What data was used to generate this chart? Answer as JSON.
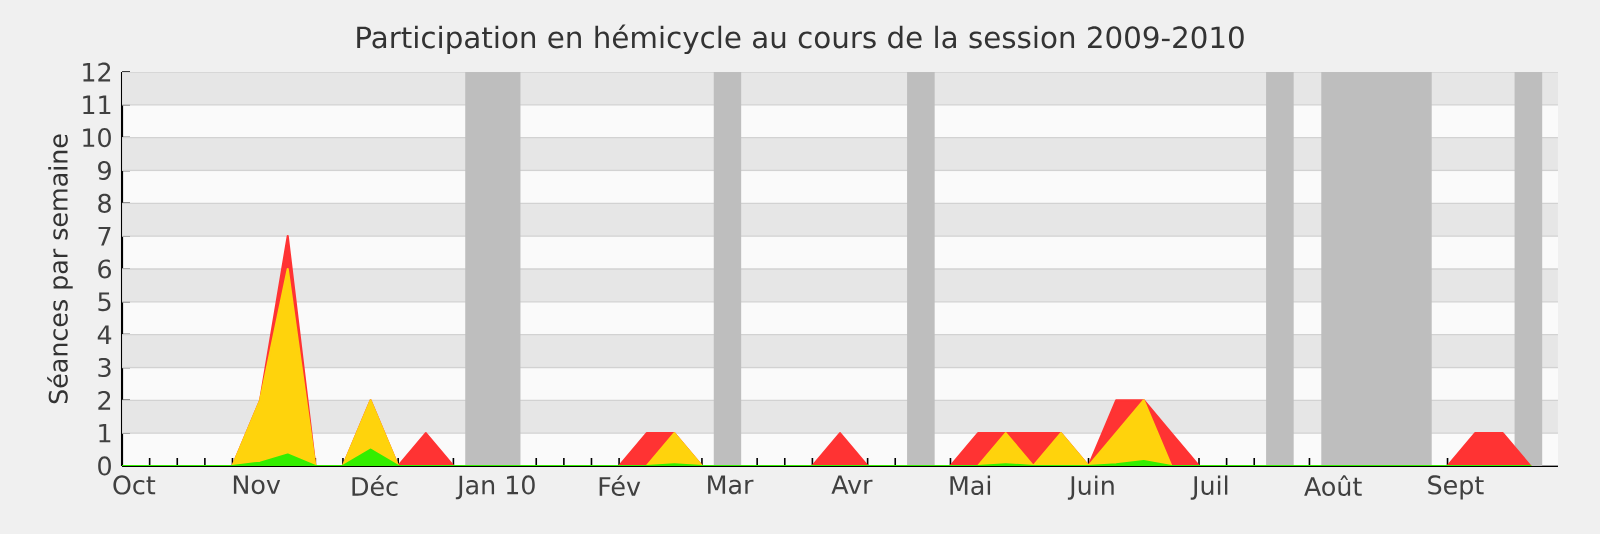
{
  "chart_data": {
    "type": "area",
    "title": "Participation en hémicycle au cours de la session 2009-2010",
    "ylabel": "Séances par semaine",
    "x": [
      "2009-09-28",
      "2009-10-05",
      "2009-10-12",
      "2009-10-19",
      "2009-10-26",
      "2009-11-02",
      "2009-11-09",
      "2009-11-16",
      "2009-11-23",
      "2009-11-30",
      "2009-12-07",
      "2009-12-14",
      "2009-12-21",
      "2009-12-28",
      "2010-01-04",
      "2010-01-11",
      "2010-01-18",
      "2010-01-25",
      "2010-02-01",
      "2010-02-08",
      "2010-02-15",
      "2010-02-22",
      "2010-03-01",
      "2010-03-08",
      "2010-03-15",
      "2010-03-22",
      "2010-03-29",
      "2010-04-05",
      "2010-04-12",
      "2010-04-19",
      "2010-04-26",
      "2010-05-03",
      "2010-05-10",
      "2010-05-17",
      "2010-05-24",
      "2010-05-31",
      "2010-06-07",
      "2010-06-14",
      "2010-06-21",
      "2010-06-28",
      "2010-07-05",
      "2010-07-12",
      "2010-07-19",
      "2010-07-26",
      "2010-08-02",
      "2010-08-09",
      "2010-08-16",
      "2010-08-23",
      "2010-08-30",
      "2010-09-06",
      "2010-09-13",
      "2010-09-20"
    ],
    "xlim": [
      "2009-09-28",
      "2010-09-27"
    ],
    "ylim": [
      0,
      12
    ],
    "xticks": [
      {
        "value": "2009-10-05",
        "label": null
      },
      {
        "value": "2009-10-12",
        "label": null
      },
      {
        "value": "2009-10-19",
        "label": null
      },
      {
        "value": "2009-10-26",
        "label": null
      },
      {
        "value": "2009-11-02",
        "label": null
      },
      {
        "value": "2009-11-09",
        "label": null
      },
      {
        "value": "2009-11-16",
        "label": null
      },
      {
        "value": "2009-11-23",
        "label": null
      },
      {
        "value": "2009-11-30",
        "label": null
      },
      {
        "value": "2009-12-07",
        "label": null
      },
      {
        "value": "2009-12-14",
        "label": null
      },
      {
        "value": "2009-12-21",
        "label": null
      },
      {
        "value": "2009-12-28",
        "label": null
      },
      {
        "value": "2010-01-04",
        "label": null
      },
      {
        "value": "2010-01-11",
        "label": null
      },
      {
        "value": "2010-01-18",
        "label": null
      },
      {
        "value": "2010-01-25",
        "label": null
      },
      {
        "value": "2010-02-01",
        "label": null
      },
      {
        "value": "2010-02-08",
        "label": null
      },
      {
        "value": "2010-02-15",
        "label": null
      },
      {
        "value": "2010-02-22",
        "label": null
      },
      {
        "value": "2010-03-01",
        "label": null
      },
      {
        "value": "2010-03-08",
        "label": null
      },
      {
        "value": "2010-03-15",
        "label": null
      },
      {
        "value": "2010-03-22",
        "label": null
      },
      {
        "value": "2010-03-29",
        "label": null
      },
      {
        "value": "2010-04-05",
        "label": null
      },
      {
        "value": "2010-04-12",
        "label": null
      },
      {
        "value": "2010-04-19",
        "label": null
      },
      {
        "value": "2010-04-26",
        "label": null
      },
      {
        "value": "2010-05-03",
        "label": null
      },
      {
        "value": "2010-05-10",
        "label": null
      },
      {
        "value": "2010-05-17",
        "label": null
      },
      {
        "value": "2010-05-24",
        "label": null
      },
      {
        "value": "2010-05-31",
        "label": null
      },
      {
        "value": "2010-06-07",
        "label": null
      },
      {
        "value": "2010-06-14",
        "label": null
      },
      {
        "value": "2010-06-21",
        "label": null
      },
      {
        "value": "2010-06-28",
        "label": null
      },
      {
        "value": "2010-07-05",
        "label": null
      },
      {
        "value": "2010-07-12",
        "label": null
      },
      {
        "value": "2010-07-19",
        "label": null
      },
      {
        "value": "2010-07-26",
        "label": null
      },
      {
        "value": "2010-08-02",
        "label": null
      },
      {
        "value": "2010-08-09",
        "label": null
      },
      {
        "value": "2010-08-16",
        "label": null
      },
      {
        "value": "2010-08-23",
        "label": null
      },
      {
        "value": "2010-08-30",
        "label": null
      },
      {
        "value": "2010-09-06",
        "label": null
      },
      {
        "value": "2010-09-13",
        "label": null
      },
      {
        "value": "2010-09-20",
        "label": null
      },
      {
        "value": "2009-10-01",
        "label": "Oct"
      },
      {
        "value": "2009-11-01",
        "label": "Nov"
      },
      {
        "value": "2009-12-01",
        "label": "Déc"
      },
      {
        "value": "2010-01-01",
        "label": "Jan 10"
      },
      {
        "value": "2010-02-01",
        "label": "Fév"
      },
      {
        "value": "2010-03-01",
        "label": "Mar"
      },
      {
        "value": "2010-04-01",
        "label": "Avr"
      },
      {
        "value": "2010-05-01",
        "label": "Mai"
      },
      {
        "value": "2010-06-01",
        "label": "Juin"
      },
      {
        "value": "2010-07-01",
        "label": "Juil"
      },
      {
        "value": "2010-08-01",
        "label": "Août"
      },
      {
        "value": "2010-09-01",
        "label": "Sept"
      }
    ],
    "yticks": [
      0,
      1,
      2,
      3,
      4,
      5,
      6,
      7,
      8,
      9,
      10,
      11,
      12
    ],
    "grid": "y",
    "bands": [
      {
        "axis": "x",
        "from": "2009-12-24",
        "to": "2010-01-07",
        "color": "#bebebe"
      },
      {
        "axis": "x",
        "from": "2010-02-25",
        "to": "2010-03-04",
        "color": "#bebebe"
      },
      {
        "axis": "x",
        "from": "2010-04-15",
        "to": "2010-04-22",
        "color": "#bebebe"
      },
      {
        "axis": "x",
        "from": "2010-07-15",
        "to": "2010-07-22",
        "color": "#bebebe"
      },
      {
        "axis": "x",
        "from": "2010-07-29",
        "to": "2010-08-26",
        "color": "#bebebe"
      },
      {
        "axis": "x",
        "from": "2010-09-16",
        "to": "2010-09-23",
        "color": "#bebebe"
      }
    ],
    "series": [
      {
        "color": "#ff3333",
        "values": [
          0,
          0,
          0,
          0,
          0,
          2,
          7,
          0,
          0,
          2,
          0,
          1,
          0,
          0,
          0,
          0,
          0,
          0,
          0,
          1,
          1,
          0,
          0,
          0,
          0,
          0,
          1,
          0,
          0,
          0,
          0,
          1,
          1,
          1,
          1,
          0,
          2,
          2,
          1,
          0,
          0,
          0,
          0,
          0,
          0,
          0,
          0,
          0,
          0,
          1,
          1,
          0
        ]
      },
      {
        "color": "#ffd30c",
        "values": [
          0,
          0,
          0,
          0,
          0,
          2,
          6,
          0,
          0,
          2,
          0,
          0,
          0,
          0,
          0,
          0,
          0,
          0,
          0,
          0,
          1,
          0,
          0,
          0,
          0,
          0,
          0,
          0,
          0,
          0,
          0,
          0,
          1,
          0,
          1,
          0,
          1,
          2,
          0,
          0,
          0,
          0,
          0,
          0,
          0,
          0,
          0,
          0,
          0,
          0,
          0,
          0
        ]
      },
      {
        "color": "#33ee00",
        "values": [
          0,
          0,
          0,
          0,
          0,
          0.1,
          0.35,
          0,
          0,
          0.5,
          0,
          0,
          0,
          0,
          0,
          0,
          0,
          0,
          0,
          0,
          0.05,
          0,
          0,
          0,
          0,
          0,
          0,
          0,
          0,
          0,
          0,
          0,
          0.05,
          0,
          0,
          0,
          0.05,
          0.15,
          0,
          0,
          0,
          0,
          0,
          0,
          0,
          0,
          0,
          0,
          0,
          0,
          0,
          0
        ]
      }
    ]
  }
}
